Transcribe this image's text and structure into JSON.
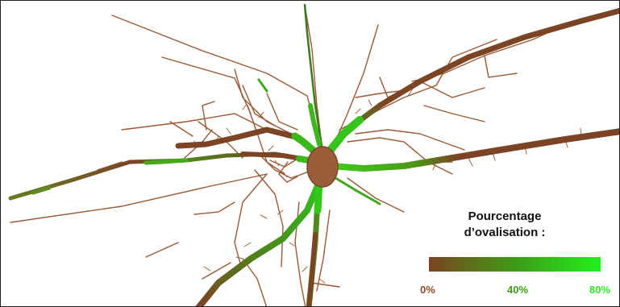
{
  "legend": {
    "title_line1": "Pourcentage",
    "title_line2": "d’ovalisation :",
    "ticks": [
      {
        "label": "0%",
        "value": 0,
        "color": "#8a4b25"
      },
      {
        "label": "40%",
        "value": 40,
        "color": "#3d9a14"
      },
      {
        "label": "80%",
        "value": 80,
        "color": "#2ee62a"
      }
    ],
    "gradient": [
      "#7a4320",
      "#3e9a17",
      "#22f01e"
    ]
  },
  "colors": {
    "root_thin": "#9a5a35",
    "root_thick": "#7b4424",
    "root_green": "#33aa11",
    "bulb": "#9a5d3a"
  }
}
